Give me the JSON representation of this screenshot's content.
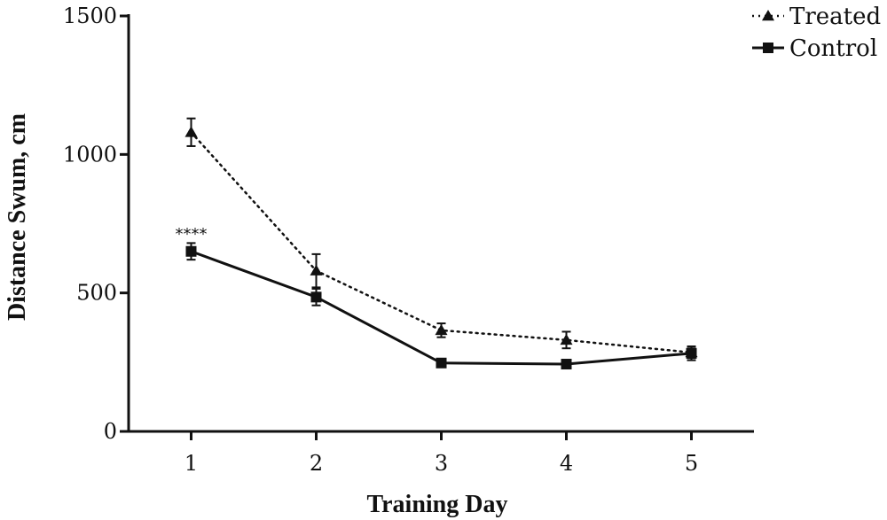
{
  "chart_data": {
    "type": "line",
    "title": "",
    "xlabel": "Training Day",
    "ylabel": "Distance Swum, cm",
    "x": [
      1,
      2,
      3,
      4,
      5
    ],
    "xlim": [
      0.5,
      5.5
    ],
    "ylim": [
      0,
      1500
    ],
    "yticks": [
      0,
      500,
      1000,
      1500
    ],
    "grid": false,
    "legend_position": "top-right",
    "series": [
      {
        "name": "Treated",
        "marker": "triangle",
        "line_style": "dotted",
        "values": [
          1080,
          580,
          365,
          330,
          285
        ],
        "errors": [
          50,
          60,
          25,
          30,
          20
        ]
      },
      {
        "name": "Control",
        "marker": "square",
        "line_style": "solid",
        "values": [
          650,
          485,
          247,
          243,
          282
        ],
        "errors": [
          30,
          30,
          12,
          8,
          25
        ]
      }
    ],
    "annotations": [
      {
        "text": "****",
        "x": 1,
        "y": 700
      }
    ]
  }
}
